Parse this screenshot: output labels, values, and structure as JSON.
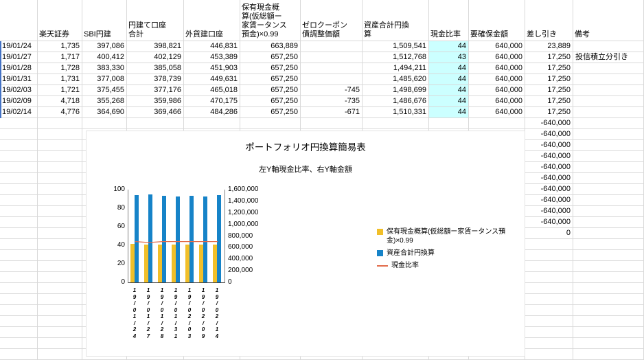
{
  "colors": {
    "highlight": "#ccffff",
    "gridline": "#d9d9d9",
    "edge_blue": "#4472c4"
  },
  "table": {
    "headers": [
      "",
      "楽天証券",
      "SBI円建",
      "円建て口座\n合計",
      "外貨建口座",
      "保有現金概\n算(仮総額ー\n家賃ータンス\n預金)×0.99",
      "ゼロクーポン\n債調整価額",
      "資産合計円換\n算",
      "現金比率",
      "要確保金額",
      "差し引き",
      "備考"
    ],
    "highlight": {
      "col": 8,
      "row_start": 0,
      "row_end": 6
    },
    "rows": [
      [
        "19/01/24",
        "1,735",
        "397,086",
        "398,821",
        "446,831",
        "663,889",
        "",
        "1,509,541",
        "44",
        "640,000",
        "23,889",
        ""
      ],
      [
        "19/01/27",
        "1,717",
        "400,412",
        "402,129",
        "453,389",
        "657,250",
        "",
        "1,512,768",
        "43",
        "640,000",
        "17,250",
        "投信積立分引き"
      ],
      [
        "19/01/28",
        "1,728",
        "383,330",
        "385,058",
        "451,903",
        "657,250",
        "",
        "1,494,211",
        "44",
        "640,000",
        "17,250",
        ""
      ],
      [
        "19/01/31",
        "1,731",
        "377,008",
        "378,739",
        "449,631",
        "657,250",
        "",
        "1,485,620",
        "44",
        "640,000",
        "17,250",
        ""
      ],
      [
        "19/02/03",
        "1,721",
        "375,455",
        "377,176",
        "465,018",
        "657,250",
        "-745",
        "1,498,699",
        "44",
        "640,000",
        "17,250",
        ""
      ],
      [
        "19/02/09",
        "4,718",
        "355,268",
        "359,986",
        "470,175",
        "657,250",
        "-735",
        "1,486,676",
        "44",
        "640,000",
        "17,250",
        ""
      ],
      [
        "19/02/14",
        "4,776",
        "364,690",
        "369,466",
        "484,286",
        "657,250",
        "-671",
        "1,510,331",
        "44",
        "640,000",
        "17,250",
        ""
      ],
      [
        "",
        "",
        "",
        "",
        "",
        "",
        "",
        "",
        "",
        "",
        "-640,000",
        ""
      ],
      [
        "",
        "",
        "",
        "",
        "",
        "",
        "",
        "",
        "",
        "",
        "-640,000",
        ""
      ],
      [
        "",
        "",
        "",
        "",
        "",
        "",
        "",
        "",
        "",
        "",
        "-640,000",
        ""
      ],
      [
        "",
        "",
        "",
        "",
        "",
        "",
        "",
        "",
        "",
        "",
        "-640,000",
        ""
      ],
      [
        "",
        "",
        "",
        "",
        "",
        "",
        "",
        "",
        "",
        "",
        "-640,000",
        ""
      ],
      [
        "",
        "",
        "",
        "",
        "",
        "",
        "",
        "",
        "",
        "",
        "-640,000",
        ""
      ],
      [
        "",
        "",
        "",
        "",
        "",
        "",
        "",
        "",
        "",
        "",
        "-640,000",
        ""
      ],
      [
        "",
        "",
        "",
        "",
        "",
        "",
        "",
        "",
        "",
        "",
        "-640,000",
        ""
      ],
      [
        "",
        "",
        "",
        "",
        "",
        "",
        "",
        "",
        "",
        "",
        "-640,000",
        ""
      ],
      [
        "",
        "",
        "",
        "",
        "",
        "",
        "",
        "",
        "",
        "",
        "-640,000",
        ""
      ],
      [
        "",
        "",
        "",
        "",
        "",
        "",
        "",
        "",
        "",
        "",
        "0",
        ""
      ]
    ]
  },
  "chart_data": {
    "type": "combo",
    "title": "ポートフォリオ円換算簡易表",
    "subtitle": "左Y軸現金比率、右Y軸金額",
    "categories": [
      "19/01/24",
      "19/01/27",
      "19/01/28",
      "19/01/31",
      "19/02/03",
      "19/02/09",
      "19/02/14"
    ],
    "series": [
      {
        "name": "保有現金概算(仮総額ー家賃ータンス預金)×0.99",
        "type": "bar",
        "axis": "right",
        "color": "#f1bf29",
        "values": [
          663889,
          657250,
          657250,
          657250,
          657250,
          657250,
          657250
        ]
      },
      {
        "name": "資産合計円換算",
        "type": "bar",
        "axis": "right",
        "color": "#1683c8",
        "values": [
          1509541,
          1512768,
          1494211,
          1485620,
          1498699,
          1486676,
          1510331
        ]
      },
      {
        "name": "現金比率",
        "type": "line",
        "axis": "left",
        "color": "#e26b4a",
        "values": [
          44,
          43,
          44,
          44,
          44,
          44,
          44
        ]
      }
    ],
    "left_axis": {
      "min": 0,
      "max": 100,
      "step": 20,
      "ticks": [
        "0",
        "20",
        "40",
        "60",
        "80",
        "100"
      ]
    },
    "right_axis": {
      "min": 0,
      "max": 1600000,
      "step": 200000,
      "ticks": [
        "0",
        "200,000",
        "400,000",
        "600,000",
        "800,000",
        "1,000,000",
        "1,200,000",
        "1,400,000",
        "1,600,000"
      ]
    },
    "legend_position": "right",
    "grid": false
  }
}
